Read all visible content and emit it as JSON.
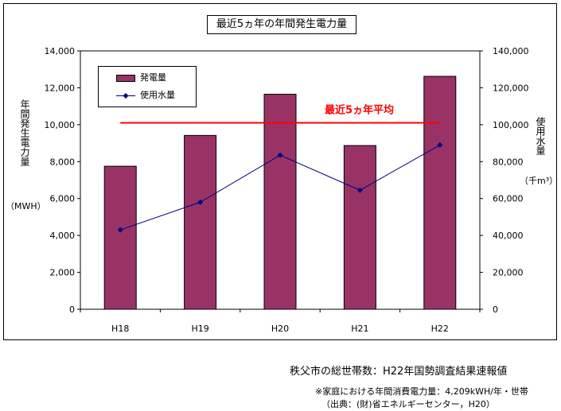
{
  "chart_data": {
    "type": "bar",
    "title": "最近5ヵ年の年間発生電力量",
    "categories": [
      "H18",
      "H19",
      "H20",
      "H21",
      "H22"
    ],
    "series": [
      {
        "name": "発電量",
        "type": "bar",
        "axis": "left",
        "color": "#993366",
        "values": [
          7750,
          9420,
          11650,
          8870,
          12620
        ]
      },
      {
        "name": "使用水量",
        "type": "line",
        "axis": "right",
        "color": "#000080",
        "values": [
          43000,
          58000,
          83500,
          64500,
          89000
        ]
      }
    ],
    "average_line": {
      "label": "最近5ヵ年平均",
      "value": 10100,
      "color": "#ff0000"
    },
    "left_axis": {
      "label": "年間発生電力量",
      "unit": "（MWH）",
      "ylim": [
        0,
        14000
      ],
      "ticks": [
        "0",
        "2,000",
        "4,000",
        "6,000",
        "8,000",
        "10,000",
        "12,000",
        "14,000"
      ]
    },
    "right_axis": {
      "label": "使用水量",
      "unit": "（千m³）",
      "ylim": [
        0,
        140000
      ],
      "ticks": [
        "0",
        "20,000",
        "40,000",
        "60,000",
        "80,000",
        "100,000",
        "120,000",
        "140,000"
      ]
    },
    "legend": {
      "position": "top-left"
    }
  },
  "notes": {
    "households": "秩父市の総世帯数：H22年国勢調査結果速報値",
    "consumption": "※家庭における年間消費電力量：4,209kWH/年・世帯",
    "source": "（出典：(財)省エネルギーセンター，H20）"
  }
}
